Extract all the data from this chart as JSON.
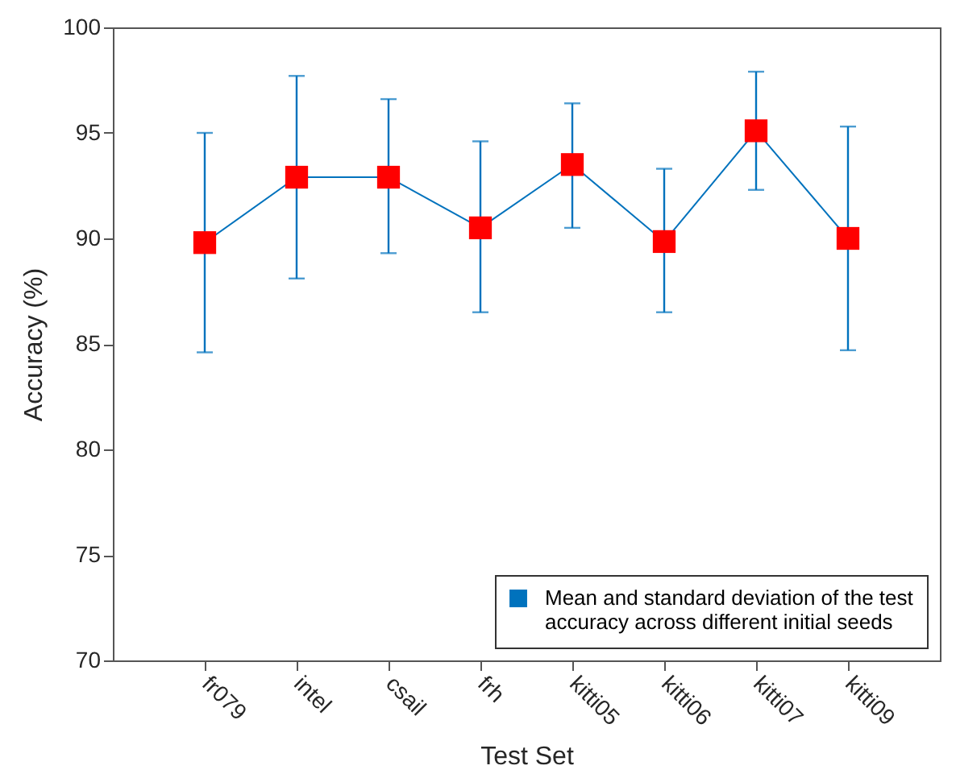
{
  "chart_data": {
    "type": "line",
    "xlabel": "Test Set",
    "ylabel": "Accuracy (%)",
    "categories": [
      "fr079",
      "intel",
      "csail",
      "frh",
      "kitti05",
      "kitti06",
      "kitti07",
      "kitti09"
    ],
    "series": [
      {
        "name": "Mean and standard deviation of the test accuracy across different initial seeds",
        "color": "#0072bd",
        "colors": [
          "#ff0000",
          "#ff0000",
          "#ff0000",
          "#ff0000",
          "#ff0000",
          "#ff0000",
          "#ff0000",
          "#ff0000"
        ],
        "values": [
          89.8,
          92.9,
          92.9,
          90.5,
          93.5,
          89.85,
          95.1,
          90.0
        ],
        "errors": [
          [
            84.6,
            95.0
          ],
          [
            88.1,
            97.7
          ],
          [
            89.3,
            96.6
          ],
          [
            86.5,
            94.6
          ],
          [
            90.5,
            96.4
          ],
          [
            86.5,
            93.3
          ],
          [
            92.3,
            97.9
          ],
          [
            84.7,
            95.3
          ]
        ]
      }
    ],
    "ylim": [
      70,
      100
    ],
    "yticks": [
      70,
      75,
      80,
      85,
      90,
      95,
      100
    ],
    "marker": "square",
    "legend": "bottom right"
  }
}
